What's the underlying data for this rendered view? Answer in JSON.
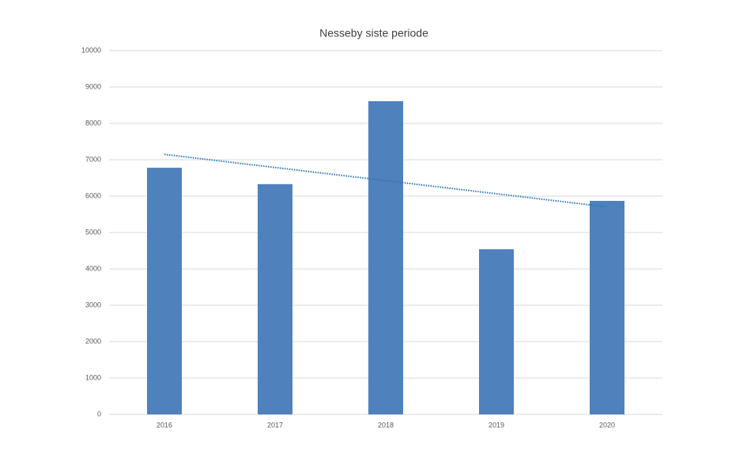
{
  "chart_data": {
    "type": "bar",
    "title": "Nesseby siste periode",
    "categories": [
      "2016",
      "2017",
      "2018",
      "2019",
      "2020"
    ],
    "values": [
      6780,
      6330,
      8610,
      4540,
      5870
    ],
    "color": "#4f81bd",
    "ylim": [
      0,
      10000
    ],
    "yticks": [
      0,
      1000,
      2000,
      3000,
      4000,
      5000,
      6000,
      7000,
      8000,
      9000,
      10000
    ],
    "grid": true,
    "trendline": {
      "type": "linear",
      "color": "#2e75b6"
    }
  }
}
